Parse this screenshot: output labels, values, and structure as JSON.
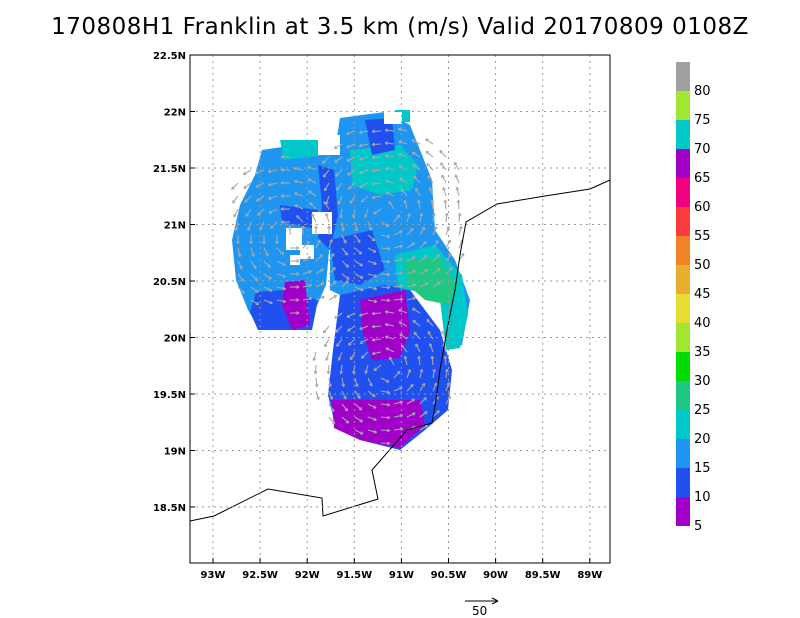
{
  "title": "170808H1 Franklin at 3.5 km (m/s) Valid 20170809 0108Z",
  "lat_ticks": [
    "22.5N",
    "22N",
    "21.5N",
    "21N",
    "20.5N",
    "20N",
    "19.5N",
    "19N",
    "18.5N"
  ],
  "lon_ticks": [
    "93W",
    "92.5W",
    "92W",
    "91.5W",
    "91W",
    "90.5W",
    "90W",
    "89.5W",
    "89W"
  ],
  "colorbar": {
    "labels": [
      "80",
      "75",
      "70",
      "65",
      "60",
      "55",
      "50",
      "45",
      "40",
      "35",
      "30",
      "25",
      "20",
      "15",
      "10",
      "5"
    ],
    "colors": [
      "#a0a0a0",
      "#a0e632",
      "#00c8c8",
      "#a000c8",
      "#f00082",
      "#fa3c3c",
      "#f08228",
      "#e6af2d",
      "#e6dc32",
      "#a0e632",
      "#00dc00",
      "#1ec882",
      "#00c8c8",
      "#1e96f0",
      "#2050f0",
      "#a000c8"
    ]
  },
  "reference_vector": {
    "label": "50"
  }
}
